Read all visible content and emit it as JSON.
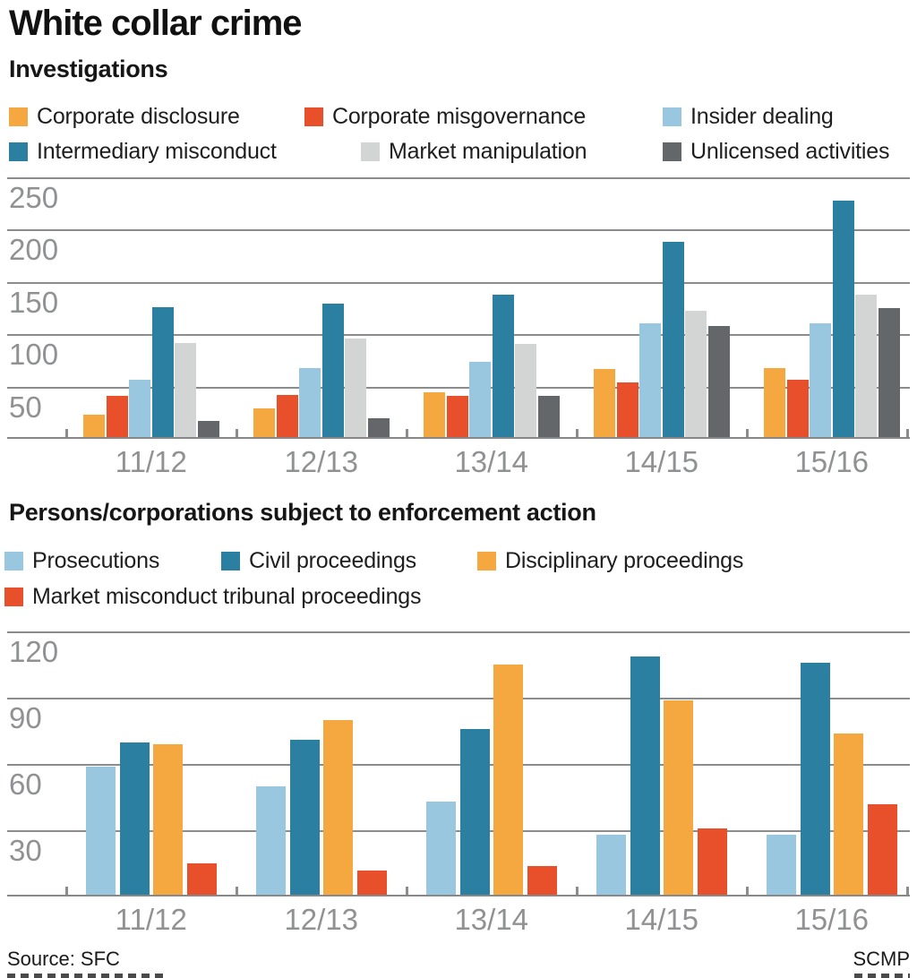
{
  "page_title": "White collar crime",
  "footer": {
    "source": "Source: SFC",
    "credit": "SCMP"
  },
  "chart_data": [
    {
      "type": "bar",
      "title": "Investigations",
      "categories": [
        "11/12",
        "12/13",
        "13/14",
        "14/15",
        "15/16"
      ],
      "y_ticks": [
        250,
        200,
        150,
        100,
        50
      ],
      "ylim": [
        0,
        250
      ],
      "grid": true,
      "legend_position": "top",
      "series": [
        {
          "name": "Corporate disclosure",
          "color": "#F5A83F",
          "values": [
            21,
            27,
            43,
            65,
            66
          ]
        },
        {
          "name": "Corporate misgovernance",
          "color": "#E8502B",
          "values": [
            39,
            40,
            39,
            52,
            55
          ]
        },
        {
          "name": "Insider dealing",
          "color": "#99C7E0",
          "values": [
            55,
            66,
            72,
            109,
            109
          ]
        },
        {
          "name": "Intermediary misconduct",
          "color": "#2B7FA1",
          "values": [
            124,
            128,
            136,
            187,
            226
          ]
        },
        {
          "name": "Market manipulation",
          "color": "#D3D4D4",
          "values": [
            90,
            94,
            89,
            121,
            136
          ]
        },
        {
          "name": "Unlicensed activities",
          "color": "#63676A",
          "values": [
            15,
            18,
            39,
            106,
            123
          ]
        }
      ]
    },
    {
      "type": "bar",
      "title": "Persons/corporations subject to enforcement action",
      "categories": [
        "11/12",
        "12/13",
        "13/14",
        "14/15",
        "15/16"
      ],
      "y_ticks": [
        120,
        90,
        60,
        30
      ],
      "ylim": [
        0,
        120
      ],
      "grid": true,
      "legend_position": "top",
      "series": [
        {
          "name": "Prosecutions",
          "color": "#99C7E0",
          "values": [
            58,
            49,
            42,
            27,
            27
          ]
        },
        {
          "name": "Civil proceedings",
          "color": "#2B7FA1",
          "values": [
            69,
            70,
            75,
            108,
            105
          ]
        },
        {
          "name": "Disciplinary proceedings",
          "color": "#F5A83F",
          "values": [
            68,
            79,
            104,
            88,
            73
          ]
        },
        {
          "name": "Market misconduct tribunal proceedings",
          "color": "#E8502B",
          "values": [
            14,
            11,
            13,
            30,
            41
          ]
        }
      ]
    }
  ]
}
